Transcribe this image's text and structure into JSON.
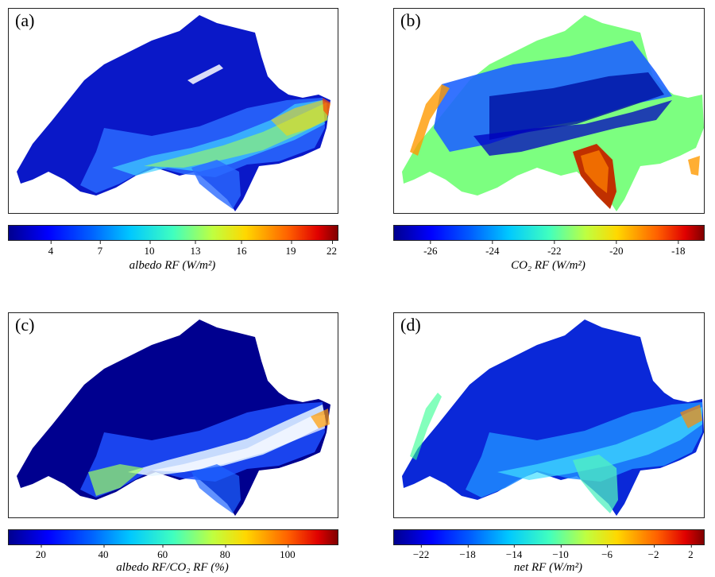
{
  "panels": [
    {
      "label": "(a)",
      "colorbar": {
        "ticks": [
          "4",
          "7",
          "10",
          "13",
          "16",
          "19",
          "22"
        ],
        "label": "albedo  RF  (W/m²)"
      }
    },
    {
      "label": "(b)",
      "colorbar": {
        "ticks": [
          "-26",
          "-24",
          "-22",
          "-20",
          "-18"
        ],
        "label": "CO₂  RF  (W/m²)"
      }
    },
    {
      "label": "(c)",
      "colorbar": {
        "ticks": [
          "20",
          "40",
          "60",
          "80",
          "100"
        ],
        "label": "albedo  RF/CO₂  RF  (%)"
      }
    },
    {
      "label": "(d)",
      "colorbar": {
        "ticks": [
          "−22",
          "−18",
          "−14",
          "−10",
          "−6",
          "−2",
          "2"
        ],
        "label": "net  RF  (W/m²)"
      }
    }
  ],
  "colormap": "jet",
  "colors": {
    "frame": "#222222",
    "dark_blue": "#00008f",
    "blue": "#0000ff",
    "cyan": "#00c8ff",
    "yellow": "#ffd800",
    "red": "#e00000",
    "dark_red": "#800000"
  }
}
